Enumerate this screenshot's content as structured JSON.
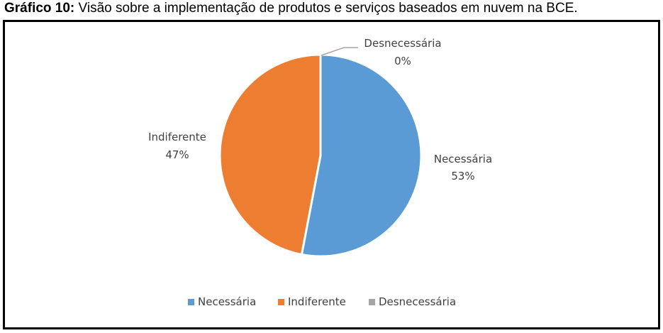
{
  "caption": {
    "prefix": "Gráfico 10:",
    "text": " Visão sobre a implementação de produtos e serviços baseados em nuvem na BCE."
  },
  "chart_data": {
    "type": "pie",
    "title": "",
    "slices": [
      {
        "name": "Necessária",
        "value": 53,
        "label": "53%",
        "color": "#5B9BD5"
      },
      {
        "name": "Indiferente",
        "value": 47,
        "label": "47%",
        "color": "#ED7D31"
      },
      {
        "name": "Desnecessária",
        "value": 0,
        "label": "0%",
        "color": "#A5A5A5"
      }
    ],
    "legend_position": "bottom",
    "start_angle_deg": 0,
    "direction": "clockwise"
  }
}
